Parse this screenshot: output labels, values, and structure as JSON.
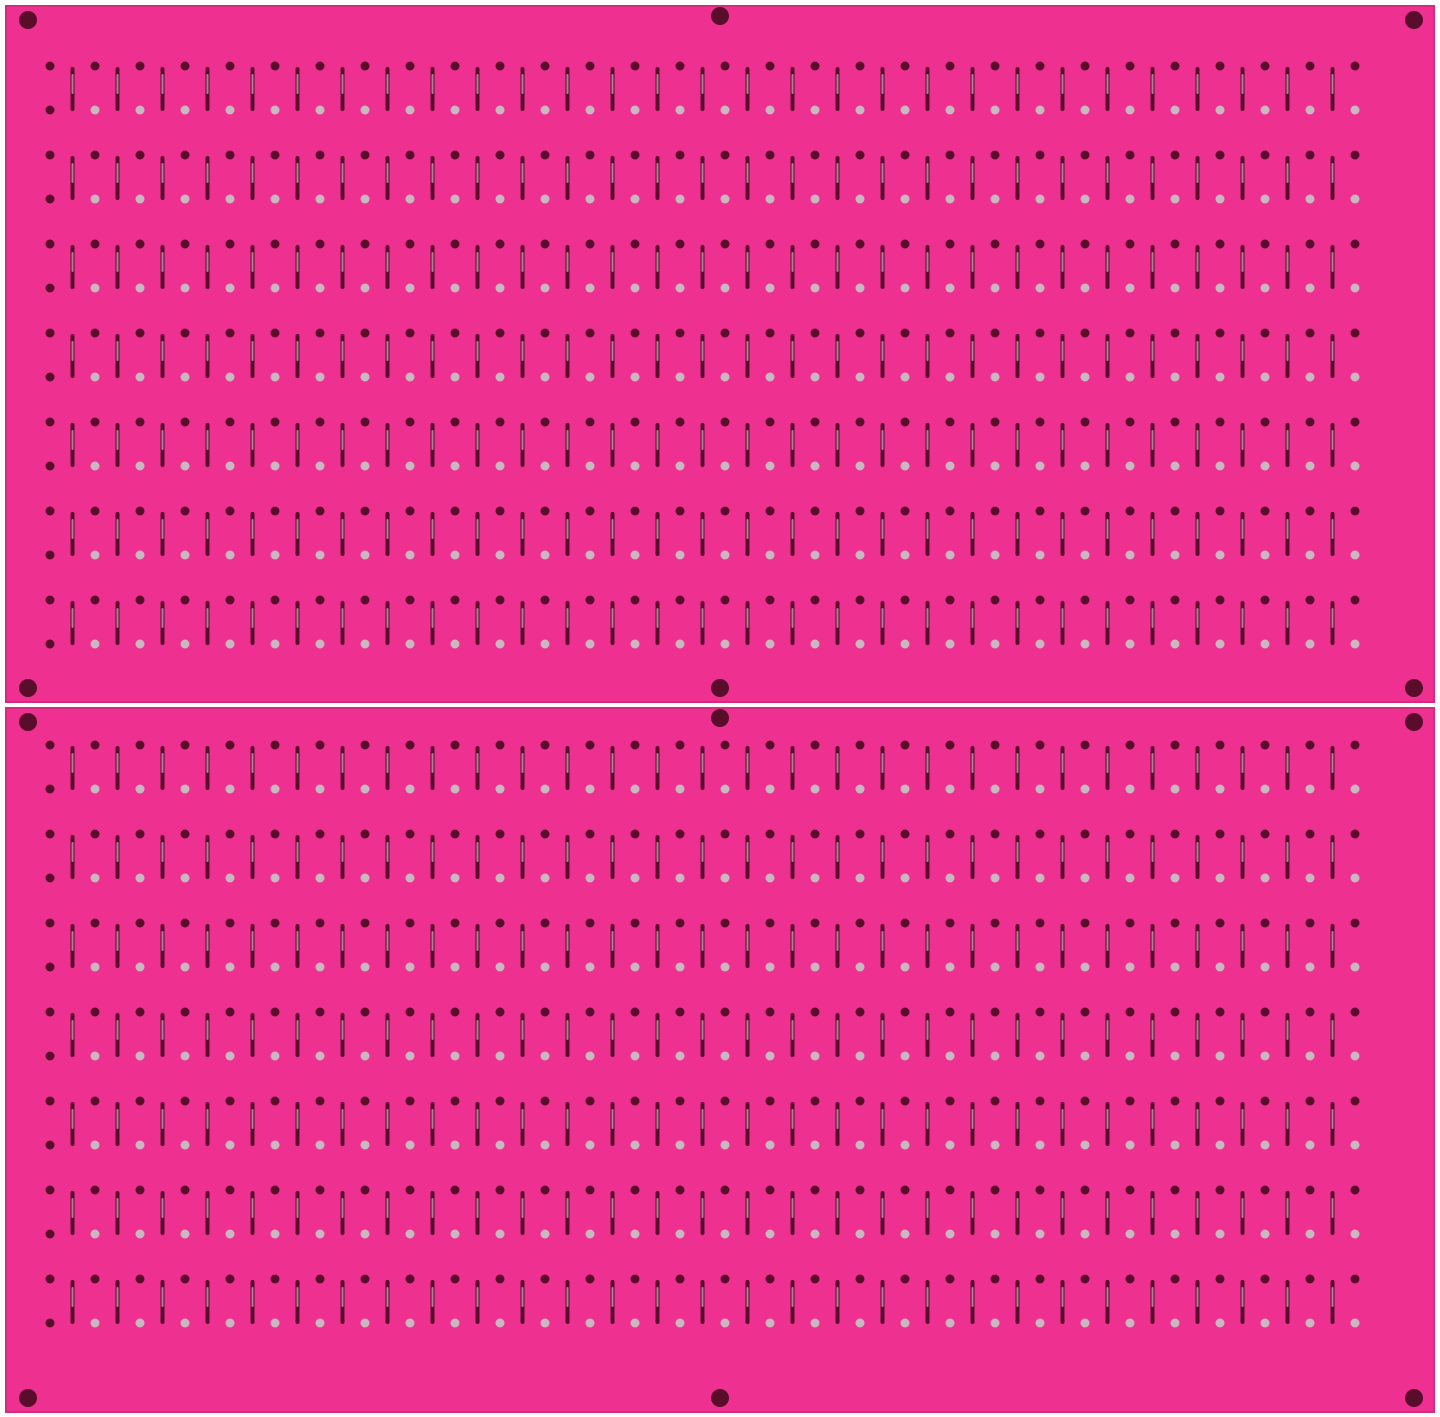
{
  "scene": {
    "subject": "pegboard-panels",
    "panel_count": 2,
    "colors": {
      "panel": "#ee3190",
      "panel_edge": "#d62a7f",
      "hole_dark": "#5a0d2a",
      "hole_light": "#c9b8c0",
      "background": "#ffffff"
    }
  }
}
